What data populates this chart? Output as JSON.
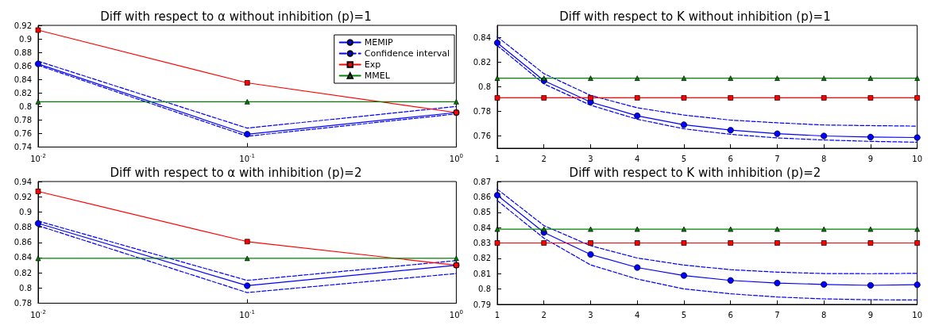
{
  "chart_data": [
    {
      "type": "line",
      "title": "Diff with respect to α without inhibition (p)=1",
      "x": [
        0.01,
        0.1,
        1
      ],
      "log": "x",
      "xlim": [
        0.01,
        1
      ],
      "xticks": [
        {
          "value": 0.01,
          "label": "10$^{-2}$"
        },
        {
          "value": 0.1,
          "label": "10$^{-1}$"
        },
        {
          "value": 1,
          "label": "10$^{0}$"
        }
      ],
      "ylim": [
        0.74,
        0.92
      ],
      "yticks": [
        0.74,
        0.76,
        0.78,
        0.8,
        0.82,
        0.84,
        0.86,
        0.88,
        0.9,
        0.92
      ],
      "grid": false,
      "legend": "top right",
      "series": [
        {
          "name": "MEMIP",
          "color": "#0000ff",
          "marker": "circle",
          "line_style": "solid",
          "values": [
            0.863,
            0.759,
            0.791
          ]
        },
        {
          "name": "Confidence interval",
          "color": "#0000ff",
          "marker": "none",
          "line_style": "dashed",
          "values": [
            0.867,
            0.768,
            0.8
          ]
        },
        {
          "color": "#0000ff",
          "marker": "none",
          "line_style": "dashed",
          "values": [
            0.861,
            0.756,
            0.789
          ]
        },
        {
          "name": "Exp",
          "color": "#ff0000",
          "marker": "square",
          "line_style": "solid",
          "values": [
            0.913,
            0.835,
            0.791
          ]
        },
        {
          "name": "MMEL",
          "color": "#008000",
          "marker": "triangle",
          "line_style": "solid",
          "values": [
            0.807,
            0.807,
            0.807
          ]
        }
      ]
    },
    {
      "type": "line",
      "title": "Diff with respect to K without inhibition (p)=1",
      "x": [
        1,
        2,
        3,
        4,
        5,
        6,
        7,
        8,
        9,
        10
      ],
      "xlim": [
        1,
        10
      ],
      "xticks": [
        1,
        2,
        3,
        4,
        5,
        6,
        7,
        8,
        9,
        10
      ],
      "ylim": [
        0.75,
        0.85
      ],
      "yticks": [
        0.76,
        0.78,
        0.8,
        0.82,
        0.84
      ],
      "grid": false,
      "legend": false,
      "series": [
        {
          "color": "#0000ff",
          "marker": "circle",
          "line_style": "solid",
          "values": [
            0.8358,
            0.805,
            0.7876,
            0.7764,
            0.7691,
            0.7647,
            0.7618,
            0.76,
            0.7591,
            0.7587
          ]
        },
        {
          "color": "#0000ff",
          "marker": "none",
          "line_style": "dashed",
          "values": [
            0.8407,
            0.8107,
            0.793,
            0.7829,
            0.777,
            0.7729,
            0.7707,
            0.7689,
            0.7684,
            0.768
          ]
        },
        {
          "color": "#0000ff",
          "marker": "none",
          "line_style": "dashed",
          "values": [
            0.8336,
            0.8024,
            0.785,
            0.7736,
            0.7658,
            0.7613,
            0.7584,
            0.7567,
            0.7556,
            0.7549
          ]
        },
        {
          "color": "#ff0000",
          "marker": "square",
          "line_style": "solid",
          "values": [
            0.791,
            0.791,
            0.791,
            0.791,
            0.791,
            0.791,
            0.791,
            0.791,
            0.791,
            0.791
          ]
        },
        {
          "color": "#008000",
          "marker": "triangle",
          "line_style": "solid",
          "values": [
            0.807,
            0.807,
            0.807,
            0.807,
            0.807,
            0.807,
            0.807,
            0.807,
            0.807,
            0.807
          ]
        }
      ]
    },
    {
      "type": "line",
      "title": "Diff with respect to α with inhibition (p)=2",
      "x": [
        0.01,
        0.1,
        1
      ],
      "log": "x",
      "xlim": [
        0.01,
        1
      ],
      "xticks": [
        {
          "value": 0.01,
          "label": "10$^{-2}$"
        },
        {
          "value": 0.1,
          "label": "10$^{-1}$"
        },
        {
          "value": 1,
          "label": "10$^{0}$"
        }
      ],
      "ylim": [
        0.78,
        0.94
      ],
      "yticks": [
        0.78,
        0.8,
        0.82,
        0.84,
        0.86,
        0.88,
        0.9,
        0.92,
        0.94
      ],
      "grid": false,
      "legend": false,
      "series": [
        {
          "color": "#0000ff",
          "marker": "circle",
          "line_style": "solid",
          "values": [
            0.885,
            0.803,
            0.83
          ]
        },
        {
          "color": "#0000ff",
          "marker": "none",
          "line_style": "dashed",
          "values": [
            0.888,
            0.81,
            0.836
          ]
        },
        {
          "color": "#0000ff",
          "marker": "none",
          "line_style": "dashed",
          "values": [
            0.882,
            0.794,
            0.819
          ]
        },
        {
          "color": "#ff0000",
          "marker": "square",
          "line_style": "solid",
          "values": [
            0.927,
            0.861,
            0.83
          ]
        },
        {
          "color": "#008000",
          "marker": "triangle",
          "line_style": "solid",
          "values": [
            0.839,
            0.839,
            0.839
          ]
        }
      ]
    },
    {
      "type": "line",
      "title": "Diff with respect to K with inhibition (p)=2",
      "x": [
        1,
        2,
        3,
        4,
        5,
        6,
        7,
        8,
        9,
        10
      ],
      "xlim": [
        1,
        10
      ],
      "xticks": [
        1,
        2,
        3,
        4,
        5,
        6,
        7,
        8,
        9,
        10
      ],
      "ylim": [
        0.79,
        0.87
      ],
      "yticks": [
        0.79,
        0.8,
        0.81,
        0.82,
        0.83,
        0.84,
        0.85,
        0.86,
        0.87
      ],
      "grid": false,
      "legend": false,
      "series": [
        {
          "color": "#0000ff",
          "marker": "circle",
          "line_style": "solid",
          "values": [
            0.8611,
            0.8368,
            0.8225,
            0.814,
            0.8088,
            0.8056,
            0.8039,
            0.803,
            0.8024,
            0.8028
          ]
        },
        {
          "color": "#0000ff",
          "marker": "none",
          "line_style": "dashed",
          "values": [
            0.865,
            0.8413,
            0.8282,
            0.8202,
            0.8156,
            0.8126,
            0.811,
            0.8101,
            0.81,
            0.8102
          ]
        },
        {
          "color": "#0000ff",
          "marker": "none",
          "line_style": "dashed",
          "values": [
            0.8576,
            0.8331,
            0.8157,
            0.8065,
            0.8001,
            0.7969,
            0.7948,
            0.7936,
            0.793,
            0.7929
          ]
        },
        {
          "color": "#ff0000",
          "marker": "square",
          "line_style": "solid",
          "values": [
            0.83,
            0.83,
            0.83,
            0.83,
            0.83,
            0.83,
            0.83,
            0.83,
            0.83,
            0.83
          ]
        },
        {
          "color": "#008000",
          "marker": "triangle",
          "line_style": "solid",
          "values": [
            0.839,
            0.839,
            0.839,
            0.839,
            0.839,
            0.839,
            0.839,
            0.839,
            0.839,
            0.839
          ]
        }
      ]
    }
  ]
}
